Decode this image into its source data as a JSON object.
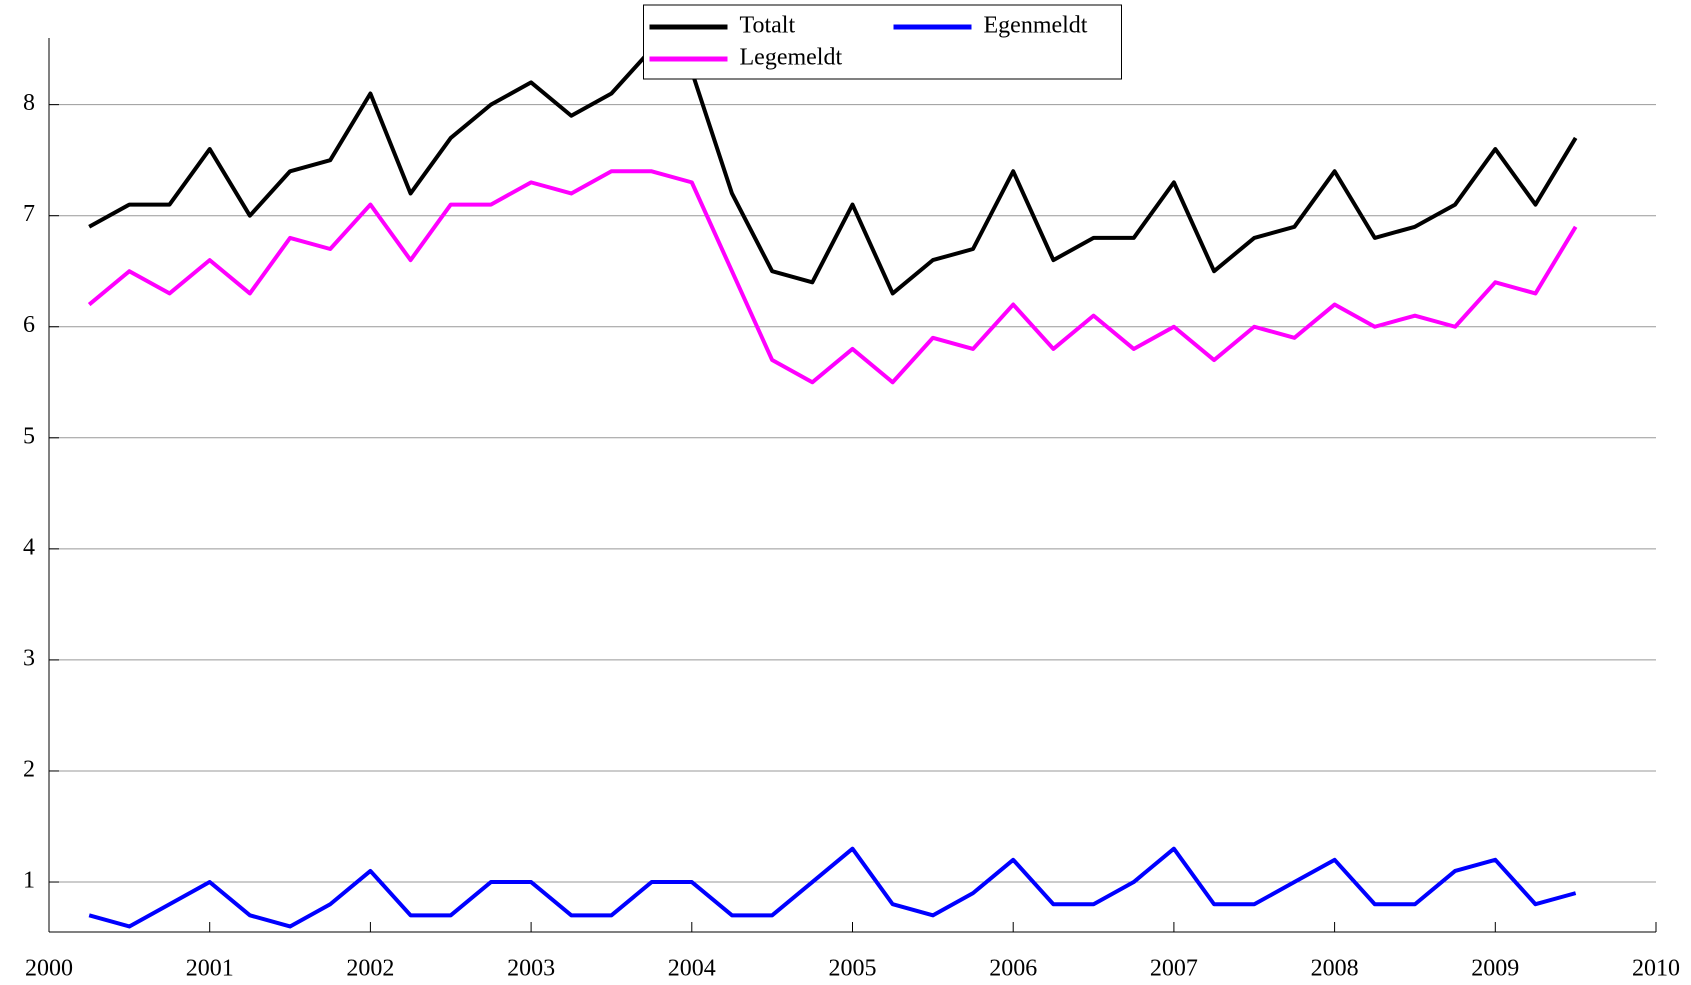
{
  "chart_data": {
    "type": "line",
    "x": [
      2000.25,
      2000.5,
      2000.75,
      2001,
      2001.25,
      2001.5,
      2001.75,
      2002,
      2002.25,
      2002.5,
      2002.75,
      2003,
      2003.25,
      2003.5,
      2003.75,
      2004,
      2004.25,
      2004.5,
      2004.75,
      2005,
      2005.25,
      2005.5,
      2005.75,
      2006,
      2006.25,
      2006.5,
      2006.75,
      2007,
      2007.25,
      2007.5,
      2007.75,
      2008,
      2008.25,
      2008.5,
      2008.75,
      2009,
      2009.25,
      2009.5
    ],
    "series": [
      {
        "name": "Totalt",
        "color": "#000000",
        "values": [
          6.9,
          7.1,
          7.1,
          7.6,
          7.0,
          7.4,
          7.5,
          8.1,
          7.2,
          7.7,
          8.0,
          8.2,
          7.9,
          8.1,
          8.5,
          8.3,
          7.2,
          6.5,
          6.4,
          7.1,
          6.3,
          6.6,
          6.7,
          7.4,
          6.6,
          6.8,
          6.8,
          7.3,
          6.5,
          6.8,
          6.9,
          7.4,
          6.8,
          6.9,
          7.1,
          7.6,
          7.1,
          7.7
        ]
      },
      {
        "name": "Legemeldt",
        "color": "#ff00ff",
        "values": [
          6.2,
          6.5,
          6.3,
          6.6,
          6.3,
          6.8,
          6.7,
          7.1,
          6.6,
          7.1,
          7.1,
          7.3,
          7.2,
          7.4,
          7.4,
          7.3,
          6.5,
          5.7,
          5.5,
          5.8,
          5.5,
          5.9,
          5.8,
          6.2,
          5.8,
          6.1,
          5.8,
          6.0,
          5.7,
          6.0,
          5.9,
          6.2,
          6.0,
          6.1,
          6.0,
          6.4,
          6.3,
          6.9
        ]
      },
      {
        "name": "Egenmeldt",
        "color": "#0000ff",
        "values": [
          0.7,
          0.6,
          0.8,
          1.0,
          0.7,
          0.6,
          0.8,
          1.1,
          0.7,
          0.7,
          1.0,
          1.0,
          0.7,
          0.7,
          1.0,
          1.0,
          0.7,
          0.7,
          1.0,
          1.3,
          0.8,
          0.7,
          0.9,
          1.2,
          0.8,
          0.8,
          1.0,
          1.3,
          0.8,
          0.8,
          1.0,
          1.2,
          0.8,
          0.8,
          1.1,
          1.2,
          0.8,
          0.9
        ]
      }
    ],
    "xlim": [
      2000,
      2010
    ],
    "xticks": [
      2000,
      2001,
      2002,
      2003,
      2004,
      2005,
      2006,
      2007,
      2008,
      2009,
      2010
    ],
    "ylim": [
      0.55,
      8.6
    ],
    "yticks": [
      1,
      2,
      3,
      4,
      5,
      6,
      7,
      8
    ],
    "grid": true,
    "legend": "upper center"
  }
}
